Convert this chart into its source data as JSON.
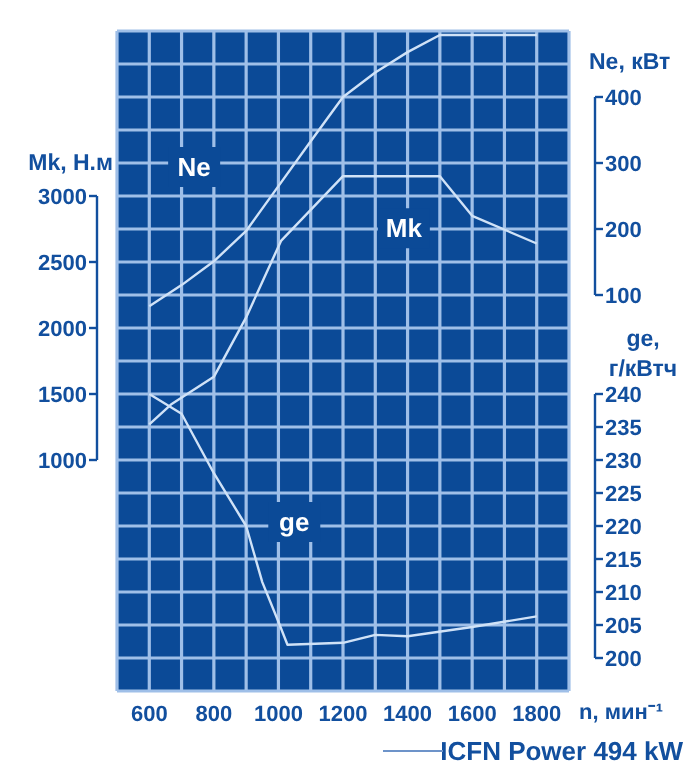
{
  "chart_data": {
    "type": "line",
    "xlabel": "n, мин⁻¹",
    "ylabel": "Mk, Н.м",
    "y2label": "Ne, кВт",
    "y3label": "ge, г/кВтч",
    "annotations": [
      "ICFN Power 494 kW"
    ],
    "x": [
      600,
      700,
      800,
      900,
      1000,
      1100,
      1200,
      1300,
      1400,
      1500,
      1600,
      1700,
      1800
    ],
    "series": [
      {
        "name": "Ne",
        "color": "#d0e2f7",
        "axis": "y2",
        "values": [
          83,
          115,
          151,
          197,
          265,
          333,
          400,
          437,
          468,
          494,
          494,
          494,
          494
        ]
      },
      {
        "name": "Mk",
        "color": "#d0e2f7",
        "x": [
          600,
          667,
          800,
          900,
          1008,
          1200,
          1500,
          1600,
          1800
        ],
        "values": [
          1270,
          1420,
          1630,
          2080,
          2660,
          3150,
          3150,
          2850,
          2640
        ]
      },
      {
        "name": "ge",
        "color": "#d0e2f7",
        "axis": "y3",
        "x": [
          600,
          700,
          800,
          900,
          950,
          1000,
          1028,
          1200,
          1300,
          1400,
          1600,
          1800
        ],
        "values": [
          240,
          237,
          228,
          220,
          211.5,
          205.5,
          202,
          202.3,
          203.5,
          203.3,
          204.7,
          206.3
        ]
      }
    ],
    "xlim": [
      500,
      1900
    ],
    "xticks": [
      {
        "value": 500,
        "label": null
      },
      600,
      {
        "value": 700,
        "label": null
      },
      800,
      {
        "value": 900,
        "label": null
      },
      1000,
      {
        "value": 1100,
        "label": null
      },
      1200,
      {
        "value": 1300,
        "label": null
      },
      1400,
      {
        "value": 1500,
        "label": null
      },
      1600,
      {
        "value": 1700,
        "label": null
      },
      1800,
      {
        "value": 1900,
        "label": null
      }
    ],
    "ylim": [
      -750,
      4250
    ],
    "yticks": [
      1000,
      1500,
      2000,
      2500,
      3000
    ],
    "y2lim": [
      -500,
      500
    ],
    "y2ticks": [
      100,
      200,
      300,
      400
    ],
    "y3lim": [
      195,
      295
    ],
    "y3ticks": [
      {
        "value": 195,
        "label": null
      },
      200,
      205,
      210,
      215,
      220,
      225,
      230,
      235,
      240,
      {
        "value": 245,
        "label": null
      },
      {
        "value": 250,
        "label": null
      },
      {
        "value": 255,
        "label": null
      },
      {
        "value": 260,
        "label": null
      },
      {
        "value": 265,
        "label": null
      },
      {
        "value": 270,
        "label": null
      },
      {
        "value": 275,
        "label": null
      },
      {
        "value": 280,
        "label": null
      },
      {
        "value": 285,
        "label": null
      },
      {
        "value": 290,
        "label": null
      },
      {
        "value": 295,
        "label": null
      }
    ],
    "grid": true,
    "line_style": "solid",
    "marker": "none"
  }
}
